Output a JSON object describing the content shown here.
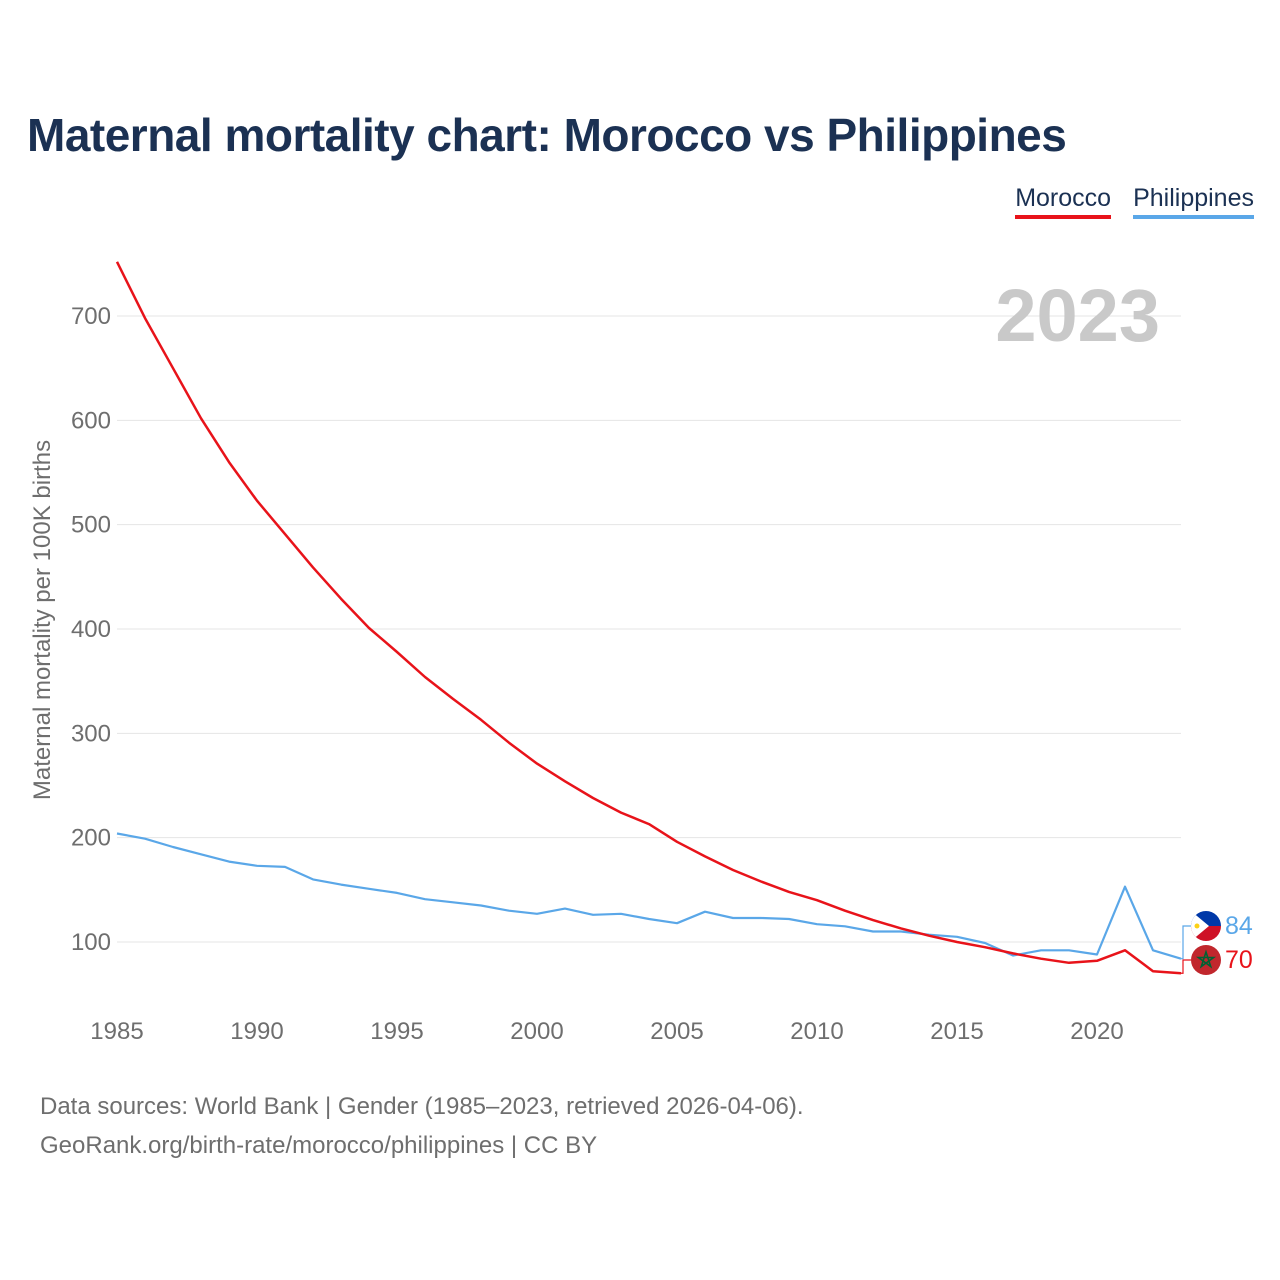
{
  "title": "Maternal mortality chart: Morocco vs Philippines",
  "legend": {
    "morocco": "Morocco",
    "philippines": "Philippines"
  },
  "year_label": "2023",
  "footer": {
    "line1": "Data sources: World Bank | Gender (1985–2023, retrieved 2026-04-06).",
    "line2": "GeoRank.org/birth-rate/morocco/philippines | CC BY"
  },
  "colors": {
    "morocco": "#e8131a",
    "philippines": "#5aa7e8",
    "title": "#1b3153",
    "grid": "#e5e5e5",
    "axis_text": "#6e6e6e"
  },
  "chart_data": {
    "type": "line",
    "title": "Maternal mortality chart: Morocco vs Philippines",
    "ylabel": "Maternal mortality per 100K births",
    "xlabel": "",
    "xlim": [
      1985,
      2023
    ],
    "ylim": [
      30,
      770
    ],
    "y_ticks": [
      100,
      200,
      300,
      400,
      500,
      600,
      700
    ],
    "x_ticks": [
      1985,
      1990,
      1995,
      2000,
      2005,
      2010,
      2015,
      2020
    ],
    "grid": true,
    "legend_position": "top-right",
    "x": [
      1985,
      1986,
      1987,
      1988,
      1989,
      1990,
      1991,
      1992,
      1993,
      1994,
      1995,
      1996,
      1997,
      1998,
      1999,
      2000,
      2001,
      2002,
      2003,
      2004,
      2005,
      2006,
      2007,
      2008,
      2009,
      2010,
      2011,
      2012,
      2013,
      2014,
      2015,
      2016,
      2017,
      2018,
      2019,
      2020,
      2021,
      2022,
      2023
    ],
    "series": [
      {
        "name": "Morocco",
        "color": "#e8131a",
        "end_label": "70",
        "values": [
          752,
          698,
          650,
          602,
          560,
          523,
          491,
          459,
          429,
          401,
          378,
          354,
          333,
          313,
          291,
          271,
          254,
          238,
          224,
          213,
          196,
          182,
          169,
          158,
          148,
          140,
          130,
          121,
          113,
          106,
          100,
          95,
          89,
          84,
          80,
          82,
          92,
          72,
          70
        ]
      },
      {
        "name": "Philippines",
        "color": "#5aa7e8",
        "end_label": "84",
        "values": [
          204,
          199,
          191,
          184,
          177,
          173,
          172,
          160,
          155,
          151,
          147,
          141,
          138,
          135,
          130,
          127,
          132,
          126,
          127,
          122,
          118,
          129,
          123,
          123,
          122,
          117,
          115,
          110,
          110,
          107,
          105,
          99,
          87,
          92,
          92,
          88,
          153,
          92,
          84
        ]
      }
    ]
  }
}
